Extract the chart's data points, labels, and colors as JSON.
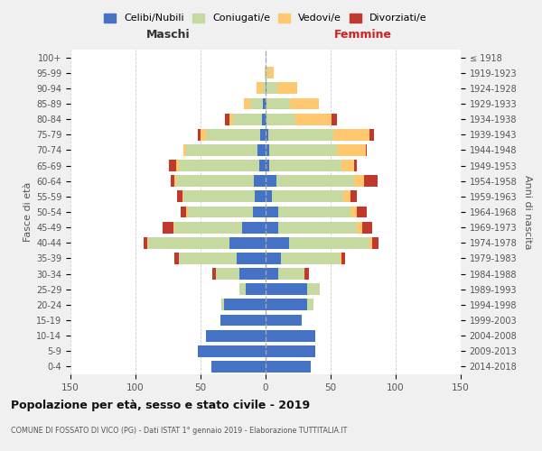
{
  "age_groups": [
    "0-4",
    "5-9",
    "10-14",
    "15-19",
    "20-24",
    "25-29",
    "30-34",
    "35-39",
    "40-44",
    "45-49",
    "50-54",
    "55-59",
    "60-64",
    "65-69",
    "70-74",
    "75-79",
    "80-84",
    "85-89",
    "90-94",
    "95-99",
    "100+"
  ],
  "birth_years": [
    "2014-2018",
    "2009-2013",
    "2004-2008",
    "1999-2003",
    "1994-1998",
    "1989-1993",
    "1984-1988",
    "1979-1983",
    "1974-1978",
    "1969-1973",
    "1964-1968",
    "1959-1963",
    "1954-1958",
    "1949-1953",
    "1944-1948",
    "1939-1943",
    "1934-1938",
    "1929-1933",
    "1924-1928",
    "1919-1923",
    "≤ 1918"
  ],
  "colors": {
    "celibe": "#4472c4",
    "coniugato": "#c6d9a0",
    "vedovo": "#ffc86e",
    "divorziato": "#c0392b"
  },
  "maschi": {
    "celibe": [
      42,
      52,
      46,
      35,
      32,
      15,
      20,
      22,
      28,
      18,
      10,
      8,
      9,
      5,
      6,
      4,
      3,
      2,
      0,
      0,
      0
    ],
    "coniugato": [
      0,
      0,
      0,
      0,
      2,
      5,
      18,
      45,
      62,
      52,
      50,
      55,
      60,
      62,
      55,
      42,
      22,
      10,
      2,
      0,
      0
    ],
    "vedovo": [
      0,
      0,
      0,
      0,
      0,
      0,
      0,
      0,
      1,
      1,
      1,
      1,
      1,
      2,
      2,
      4,
      3,
      5,
      5,
      1,
      0
    ],
    "divorziato": [
      0,
      0,
      0,
      0,
      0,
      0,
      3,
      3,
      3,
      8,
      4,
      4,
      3,
      5,
      0,
      2,
      3,
      0,
      0,
      0,
      0
    ]
  },
  "femmine": {
    "nubile": [
      35,
      38,
      38,
      28,
      32,
      32,
      10,
      12,
      18,
      10,
      10,
      5,
      8,
      3,
      3,
      2,
      1,
      1,
      1,
      0,
      0
    ],
    "coniugata": [
      0,
      0,
      0,
      0,
      5,
      10,
      20,
      45,
      62,
      60,
      55,
      55,
      60,
      55,
      52,
      50,
      22,
      18,
      8,
      2,
      0
    ],
    "vedova": [
      0,
      0,
      0,
      0,
      0,
      0,
      0,
      1,
      2,
      4,
      5,
      5,
      8,
      10,
      22,
      28,
      28,
      22,
      15,
      4,
      1
    ],
    "divorziata": [
      0,
      0,
      0,
      0,
      0,
      0,
      3,
      3,
      5,
      8,
      8,
      5,
      10,
      2,
      1,
      3,
      4,
      0,
      0,
      0,
      0
    ]
  },
  "title": "Popolazione per età, sesso e stato civile - 2019",
  "subtitle": "COMUNE DI FOSSATO DI VICO (PG) - Dati ISTAT 1° gennaio 2019 - Elaborazione TUTTITALIA.IT",
  "xlabel_left": "Maschi",
  "xlabel_right": "Femmine",
  "ylabel_left": "Fasce di età",
  "ylabel_right": "Anni di nascita",
  "xlim": 150,
  "xticks": [
    -150,
    -100,
    -50,
    0,
    50,
    100,
    150
  ],
  "legend_labels": [
    "Celibi/Nubili",
    "Coniugati/e",
    "Vedovi/e",
    "Divorziati/e"
  ],
  "background_color": "#f0f0f0",
  "plot_background": "#ffffff"
}
